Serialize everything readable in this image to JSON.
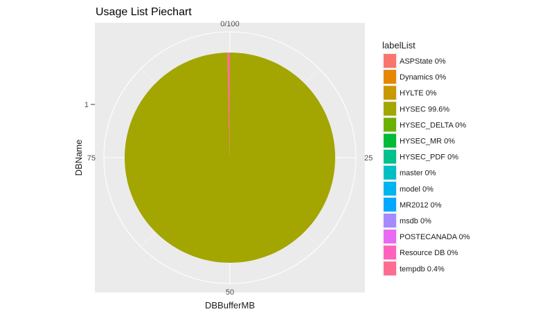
{
  "chart_data": {
    "type": "pie",
    "title": "Usage List Piechart",
    "xlabel": "DBBufferMB",
    "ylabel": "DBName",
    "y_tick_labels": [
      "1"
    ],
    "theta_tick_labels": [
      "0/100",
      "25",
      "50",
      "75"
    ],
    "theta_tick_values": [
      0,
      25,
      50,
      75
    ],
    "legend_title": "labelList",
    "legend_position": "right",
    "grid": true,
    "panel_background": "#ebebeb",
    "slices": [
      {
        "label": "ASPState 0%",
        "value": 0,
        "color": "#F8766D"
      },
      {
        "label": "Dynamics 0%",
        "value": 0,
        "color": "#E58700"
      },
      {
        "label": "HYLTE 0%",
        "value": 0,
        "color": "#C99800"
      },
      {
        "label": "HYSEC 99.6%",
        "value": 99.6,
        "color": "#A3A500"
      },
      {
        "label": "HYSEC_DELTA 0%",
        "value": 0,
        "color": "#6BB100"
      },
      {
        "label": "HYSEC_MR 0%",
        "value": 0,
        "color": "#00BA38"
      },
      {
        "label": "HYSEC_PDF 0%",
        "value": 0,
        "color": "#00C08B"
      },
      {
        "label": "master 0%",
        "value": 0,
        "color": "#00BFC4"
      },
      {
        "label": "model 0%",
        "value": 0,
        "color": "#00B4F0"
      },
      {
        "label": "MR2012 0%",
        "value": 0,
        "color": "#00A9FF"
      },
      {
        "label": "msdb 0%",
        "value": 0,
        "color": "#A58AFF"
      },
      {
        "label": "POSTECANADA 0%",
        "value": 0,
        "color": "#E76BF3"
      },
      {
        "label": "Resource DB 0%",
        "value": 0,
        "color": "#FF62BC"
      },
      {
        "label": "tempdb 0.4%",
        "value": 0.4,
        "color": "#FF6C91"
      }
    ]
  }
}
